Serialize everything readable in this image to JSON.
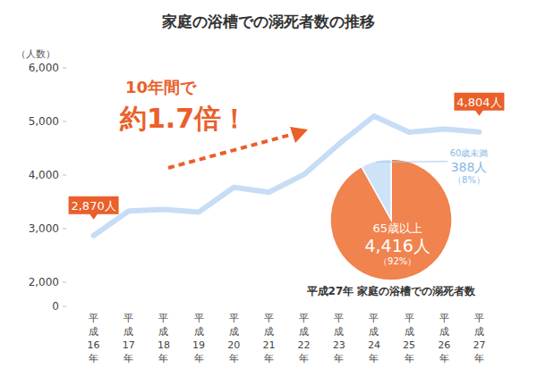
{
  "chart_data": [
    {
      "type": "line",
      "title": "家庭の浴槽での溺死者数の推移",
      "y_label": "（人数）",
      "categories": [
        "平成16年",
        "平成17年",
        "平成18年",
        "平成19年",
        "平成20年",
        "平成21年",
        "平成22年",
        "平成23年",
        "平成24年",
        "平成25年",
        "平成26年",
        "平成27年"
      ],
      "values": [
        2870,
        3330,
        3360,
        3310,
        3770,
        3680,
        4010,
        4580,
        5100,
        4800,
        4860,
        4804
      ],
      "value_labels": [
        "2,870人",
        null,
        null,
        null,
        null,
        null,
        null,
        null,
        null,
        null,
        null,
        "4,804人"
      ],
      "data_labels": true,
      "color": "#c7ddf6",
      "ylim": [
        0,
        6000
      ],
      "yticks": [
        0,
        {
          "value": 2000,
          "label": "2,000"
        },
        {
          "value": 3000,
          "label": "3,000"
        },
        {
          "value": 4000,
          "label": "4,000"
        },
        {
          "value": 5000,
          "label": "5,000"
        },
        {
          "value": 6000,
          "label": "6,000"
        }
      ],
      "grid": false,
      "annotations": [
        "10年間で",
        "約1.7倍！"
      ]
    },
    {
      "type": "pie",
      "title": "平成27年 家庭の浴槽での溺死者数",
      "categories": [
        "65歳以上",
        "60歳未満"
      ],
      "values": [
        4416,
        388
      ],
      "value_labels": [
        "4,416人",
        "388人"
      ],
      "share_labels": [
        "（92%）",
        "（8%）"
      ],
      "data_labels": true,
      "colors": [
        "#f0834e",
        "#cfe3f8"
      ]
    }
  ]
}
